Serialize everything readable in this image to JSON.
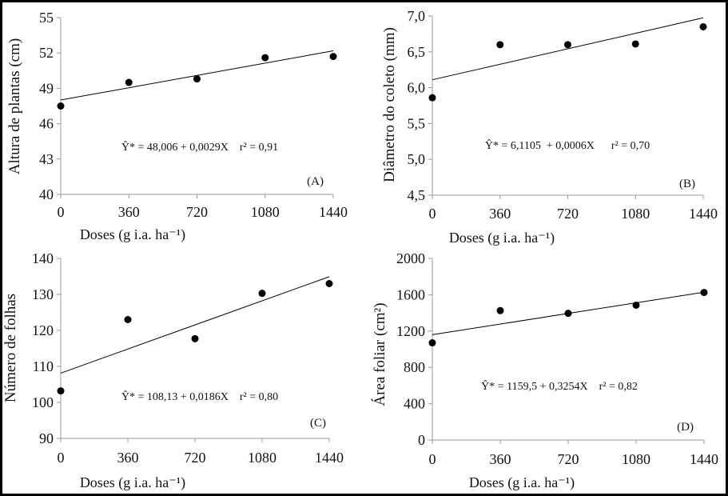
{
  "chart_data": [
    {
      "type": "scatter",
      "panel_label": "(A)",
      "xlabel": "Doses (g i.a. ha⁻¹)",
      "ylabel": "Altura de plantas (cm)",
      "x": [
        0,
        360,
        720,
        1080,
        1440
      ],
      "y": [
        47.5,
        49.5,
        49.8,
        51.6,
        51.7
      ],
      "xticks": [
        "0",
        "360",
        "720",
        "1080",
        "1440"
      ],
      "yticks": [
        "40",
        "43",
        "46",
        "49",
        "52",
        "55"
      ],
      "ylim": [
        40,
        55
      ],
      "xlim": [
        0,
        1440
      ],
      "fit": {
        "intercept": 48.006,
        "slope": 0.0029
      },
      "equation": "Ŷ* = 48,006 + 0,0029X    r² = 0,91"
    },
    {
      "type": "scatter",
      "panel_label": "(B)",
      "xlabel": "Doses (g i.a. ha⁻¹)",
      "ylabel": "Diâmetro do coleto (mm)",
      "x": [
        0,
        360,
        720,
        1080,
        1440
      ],
      "y": [
        5.86,
        6.6,
        6.6,
        6.61,
        6.85
      ],
      "xticks": [
        "0",
        "360",
        "720",
        "1080",
        "1440"
      ],
      "yticks": [
        "4,5",
        "5,0",
        "5,5",
        "6,0",
        "6,5",
        "7,0"
      ],
      "ylim": [
        4.5,
        7.0
      ],
      "xlim": [
        0,
        1440
      ],
      "fit": {
        "intercept": 6.1105,
        "slope": 0.0006
      },
      "equation": "Ŷ* = 6,1105  + 0,0006X      r² = 0,70"
    },
    {
      "type": "scatter",
      "panel_label": "(C)",
      "xlabel": "Doses (g i.a. ha⁻¹)",
      "ylabel": "Número de folhas",
      "x": [
        0,
        360,
        720,
        1080,
        1440
      ],
      "y": [
        103.2,
        123,
        117.7,
        130.3,
        133
      ],
      "xticks": [
        "0",
        "360",
        "720",
        "1080",
        "1440"
      ],
      "yticks": [
        "90",
        "100",
        "110",
        "120",
        "130",
        "140"
      ],
      "ylim": [
        90,
        140
      ],
      "xlim": [
        0,
        1440
      ],
      "fit": {
        "intercept": 108.13,
        "slope": 0.0186
      },
      "equation": "Ŷ* = 108,13 + 0,0186X    r² = 0,80"
    },
    {
      "type": "scatter",
      "panel_label": "(D)",
      "xlabel": "Doses (g i.a. ha⁻¹)",
      "ylabel": "Área foliar (cm²)",
      "x": [
        0,
        360,
        720,
        1080,
        1440
      ],
      "y": [
        1070,
        1425,
        1395,
        1485,
        1625
      ],
      "xticks": [
        "0",
        "360",
        "720",
        "1080",
        "1440"
      ],
      "yticks": [
        "0",
        "400",
        "800",
        "1200",
        "1600",
        "2000"
      ],
      "ylim": [
        0,
        2000
      ],
      "xlim": [
        0,
        1440
      ],
      "fit": {
        "intercept": 1159.5,
        "slope": 0.3254
      },
      "equation": "Ŷ* = 1159,5 + 0,3254X    r² = 0,82"
    }
  ]
}
